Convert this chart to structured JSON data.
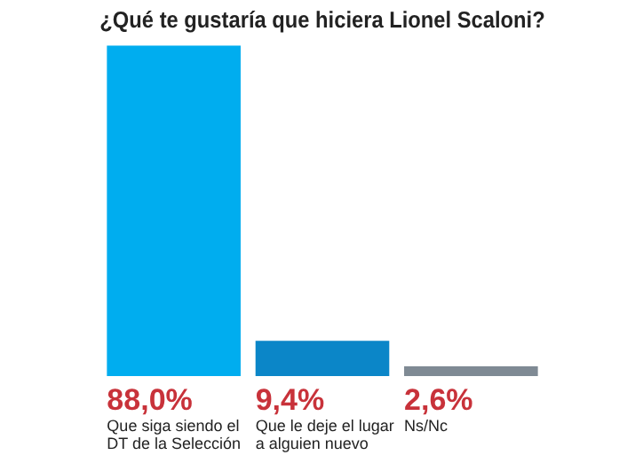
{
  "chart_data": {
    "type": "bar",
    "title": "¿Qué te gustaría que hiciera Lionel Scaloni?",
    "categories": [
      "Que siga siendo el DT de la Selección",
      "Que le deje el lugar a alguien nuevo",
      "Ns/Nc"
    ],
    "values": [
      88.0,
      9.4,
      2.6
    ],
    "colors": [
      "#00adef",
      "#0b86c8",
      "#7f8a94"
    ],
    "value_labels": [
      "88,0%",
      "9,4%",
      "2,6%"
    ]
  }
}
